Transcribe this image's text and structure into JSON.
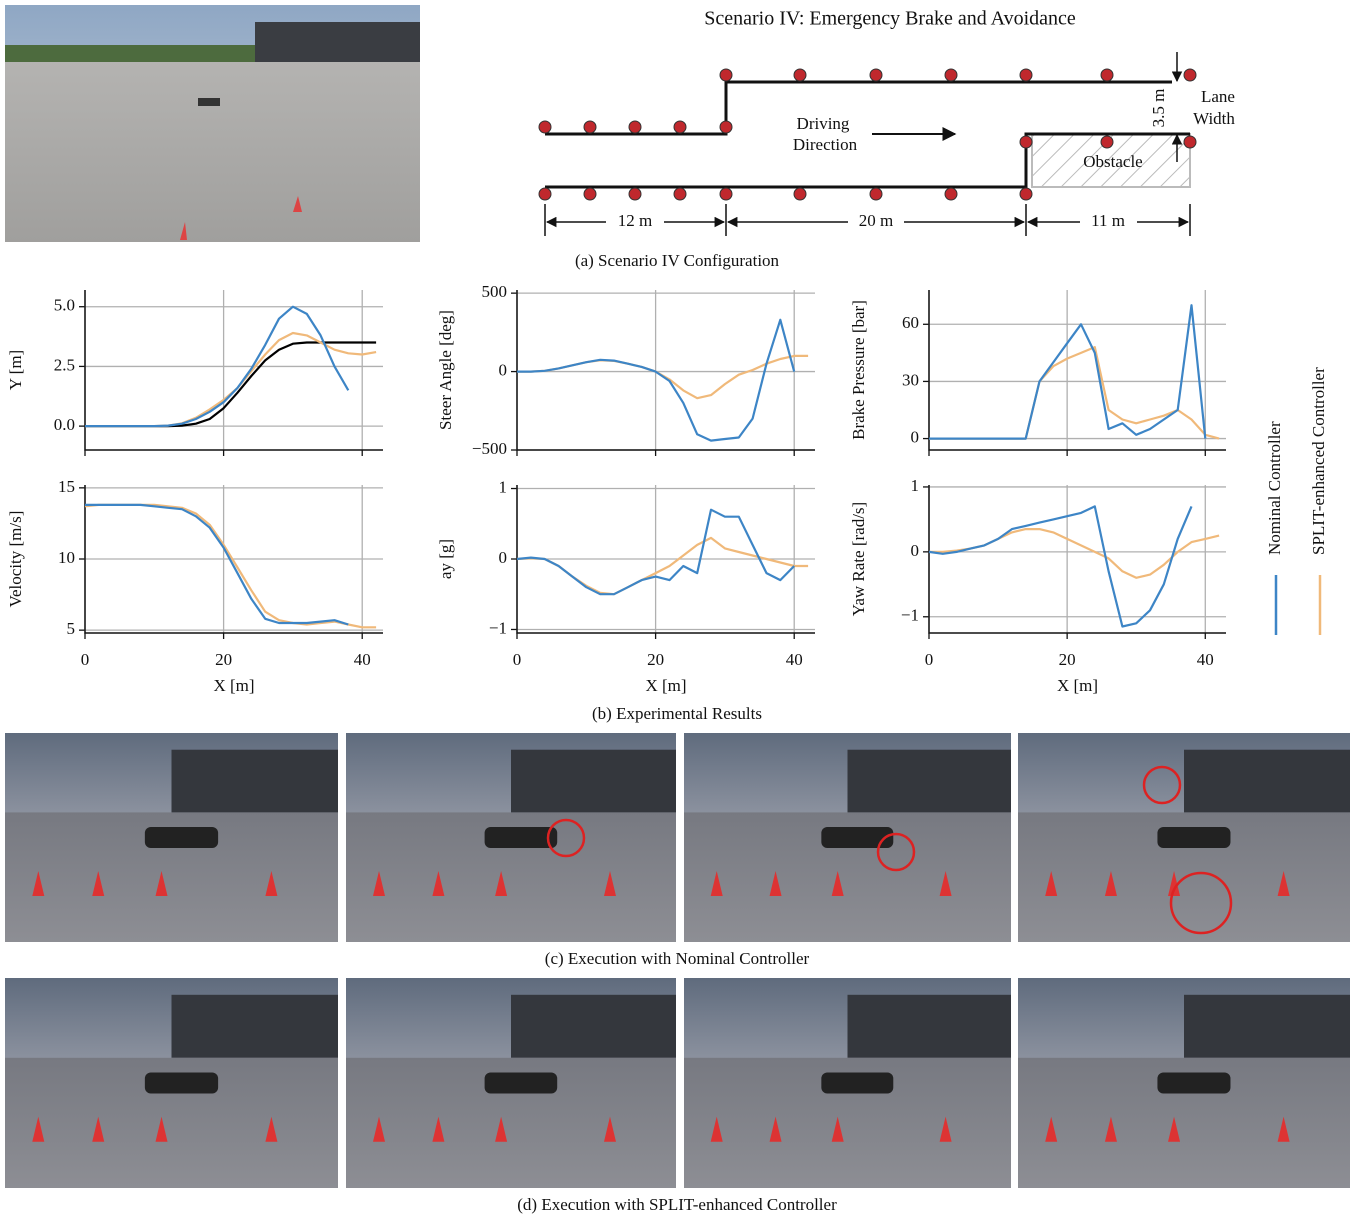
{
  "scenario": {
    "title": "Scenario IV: Emergency Brake and Avoidance",
    "driving": "Driving",
    "direction": "Direction",
    "lane": "Lane",
    "width": "Width",
    "lane_width": "3.5 m",
    "obstacle": "Obstacle",
    "seg1": "12 m",
    "seg2": "20 m",
    "seg3": "11 m",
    "caption": "(a) Scenario IV Configuration"
  },
  "results_caption": "(b) Experimental Results",
  "nominal_caption": "(c) Execution with Nominal Controller",
  "split_caption": "(d) Execution with SPLIT-enhanced Controller",
  "chart_data": [
    {
      "type": "line",
      "ylabel": "Y [m]",
      "x": [
        0,
        2,
        4,
        6,
        8,
        10,
        12,
        14,
        16,
        18,
        20,
        22,
        24,
        26,
        28,
        30,
        32,
        34,
        36,
        38,
        40,
        42
      ],
      "xlim": [
        0,
        43
      ],
      "xticks": [
        0,
        20,
        40
      ],
      "ylim": [
        -1,
        5.7
      ],
      "yticks": [
        {
          "value": 0,
          "label": "0.0"
        },
        {
          "value": 2.5,
          "label": "2.5"
        },
        {
          "value": 5,
          "label": "5.0"
        }
      ],
      "grid": true,
      "series": [
        {
          "name": "Nominal Controller",
          "color": "#3d85c6",
          "values": [
            0,
            0,
            0,
            0,
            0,
            0,
            0.02,
            0.1,
            0.3,
            0.6,
            1.0,
            1.6,
            2.4,
            3.4,
            4.5,
            5.0,
            4.7,
            3.8,
            2.5,
            1.5,
            null,
            null
          ]
        },
        {
          "name": "SPLIT-enhanced Controller",
          "color": "#f0b97a",
          "values": [
            0,
            0,
            0,
            0,
            0,
            0,
            0.02,
            0.12,
            0.35,
            0.7,
            1.1,
            1.6,
            2.3,
            3.0,
            3.6,
            3.9,
            3.8,
            3.5,
            3.2,
            3.05,
            3.0,
            3.1
          ]
        },
        {
          "color": "#000000",
          "values": [
            0,
            0,
            0,
            0,
            0,
            0,
            0,
            0.02,
            0.1,
            0.3,
            0.75,
            1.4,
            2.1,
            2.75,
            3.2,
            3.45,
            3.5,
            3.5,
            3.5,
            3.5,
            3.5,
            3.5
          ]
        }
      ]
    },
    {
      "type": "line",
      "ylabel": "Steer Angle [deg]",
      "x": [
        0,
        2,
        4,
        6,
        8,
        10,
        12,
        14,
        16,
        18,
        20,
        22,
        24,
        26,
        28,
        30,
        32,
        34,
        36,
        38,
        40,
        42
      ],
      "xlim": [
        0,
        43
      ],
      "xticks": [
        0,
        20,
        40
      ],
      "ylim": [
        -500,
        520
      ],
      "yticks": [
        {
          "value": -500,
          "label": "−500"
        },
        0,
        500
      ],
      "grid": true,
      "series": [
        {
          "color": "#3d85c6",
          "values": [
            0,
            0,
            5,
            20,
            40,
            60,
            75,
            70,
            50,
            30,
            0,
            -60,
            -200,
            -400,
            -440,
            -430,
            -420,
            -300,
            50,
            330,
            0,
            null
          ]
        },
        {
          "color": "#f0b97a",
          "values": [
            0,
            0,
            5,
            20,
            40,
            60,
            72,
            68,
            50,
            30,
            0,
            -50,
            -120,
            -170,
            -150,
            -80,
            -20,
            10,
            50,
            80,
            100,
            100
          ]
        }
      ]
    },
    {
      "type": "line",
      "ylabel": "Brake Pressure [bar]",
      "x": [
        0,
        2,
        4,
        6,
        8,
        10,
        12,
        14,
        16,
        18,
        20,
        22,
        24,
        26,
        28,
        30,
        32,
        34,
        36,
        38,
        40,
        42
      ],
      "xlim": [
        0,
        43
      ],
      "xticks": [
        0,
        20,
        40
      ],
      "ylim": [
        -6,
        78
      ],
      "yticks": [
        0,
        30,
        60
      ],
      "grid": true,
      "series": [
        {
          "color": "#3d85c6",
          "values": [
            0,
            0,
            0,
            0,
            0,
            0,
            0,
            0,
            30,
            40,
            50,
            60,
            45,
            5,
            8,
            2,
            5,
            10,
            15,
            70,
            0,
            null
          ]
        },
        {
          "color": "#f0b97a",
          "values": [
            0,
            0,
            0,
            0,
            0,
            0,
            0,
            0,
            30,
            38,
            42,
            45,
            48,
            15,
            10,
            8,
            10,
            12,
            15,
            10,
            2,
            0
          ]
        }
      ]
    },
    {
      "type": "line",
      "ylabel": "Velocity [m/s]",
      "xlabel": "X [m]",
      "x": [
        0,
        2,
        4,
        6,
        8,
        10,
        12,
        14,
        16,
        18,
        20,
        22,
        24,
        26,
        28,
        30,
        32,
        34,
        36,
        38,
        40,
        42
      ],
      "xlim": [
        0,
        43
      ],
      "xticks": [
        0,
        20,
        40
      ],
      "ylim": [
        4.8,
        15.2
      ],
      "yticks": [
        5,
        10,
        15
      ],
      "grid": true,
      "series": [
        {
          "color": "#3d85c6",
          "values": [
            13.8,
            13.8,
            13.8,
            13.8,
            13.8,
            13.7,
            13.6,
            13.5,
            13.0,
            12.2,
            10.8,
            9.0,
            7.2,
            5.8,
            5.5,
            5.5,
            5.5,
            5.6,
            5.7,
            5.4,
            null,
            null
          ]
        },
        {
          "color": "#f0b97a",
          "values": [
            13.7,
            13.8,
            13.8,
            13.8,
            13.8,
            13.8,
            13.7,
            13.6,
            13.2,
            12.4,
            11.0,
            9.4,
            7.8,
            6.3,
            5.7,
            5.5,
            5.4,
            5.5,
            5.6,
            5.4,
            5.2,
            5.2
          ]
        }
      ]
    },
    {
      "type": "line",
      "ylabel": "ay [g]",
      "xlabel": "X [m]",
      "x": [
        0,
        2,
        4,
        6,
        8,
        10,
        12,
        14,
        16,
        18,
        20,
        22,
        24,
        26,
        28,
        30,
        32,
        34,
        36,
        38,
        40,
        42
      ],
      "xlim": [
        0,
        43
      ],
      "xticks": [
        0,
        20,
        40
      ],
      "ylim": [
        -1.05,
        1.05
      ],
      "yticks": [
        {
          "value": -1,
          "label": "−1"
        },
        0,
        1
      ],
      "grid": true,
      "series": [
        {
          "color": "#3d85c6",
          "values": [
            0,
            0.02,
            0,
            -0.1,
            -0.25,
            -0.4,
            -0.5,
            -0.5,
            -0.4,
            -0.3,
            -0.25,
            -0.3,
            -0.1,
            -0.2,
            0.7,
            0.6,
            0.6,
            0.2,
            -0.2,
            -0.3,
            -0.1,
            null
          ]
        },
        {
          "color": "#f0b97a",
          "values": [
            0,
            0.01,
            0,
            -0.1,
            -0.25,
            -0.38,
            -0.48,
            -0.5,
            -0.4,
            -0.3,
            -0.2,
            -0.1,
            0.05,
            0.2,
            0.3,
            0.15,
            0.1,
            0.05,
            0,
            -0.05,
            -0.1,
            -0.1
          ]
        }
      ]
    },
    {
      "type": "line",
      "ylabel": "Yaw Rate [rad/s]",
      "xlabel": "X [m]",
      "x": [
        0,
        2,
        4,
        6,
        8,
        10,
        12,
        14,
        16,
        18,
        20,
        22,
        24,
        26,
        28,
        30,
        32,
        34,
        36,
        38,
        40,
        42
      ],
      "xlim": [
        0,
        43
      ],
      "xticks": [
        0,
        20,
        40
      ],
      "ylim": [
        -1.25,
        1.03
      ],
      "yticks": [
        {
          "value": -1,
          "label": "−1"
        },
        0,
        1
      ],
      "grid": true,
      "series": [
        {
          "color": "#3d85c6",
          "values": [
            0,
            -0.03,
            0,
            0.05,
            0.1,
            0.2,
            0.35,
            0.4,
            0.45,
            0.5,
            0.55,
            0.6,
            0.7,
            -0.3,
            -1.15,
            -1.1,
            -0.9,
            -0.5,
            0.2,
            0.7,
            null,
            null
          ]
        },
        {
          "color": "#f0b97a",
          "values": [
            0,
            0,
            0.02,
            0.05,
            0.1,
            0.2,
            0.3,
            0.35,
            0.35,
            0.3,
            0.2,
            0.1,
            0,
            -0.1,
            -0.3,
            -0.4,
            -0.35,
            -0.2,
            0,
            0.15,
            0.2,
            0.25
          ]
        }
      ]
    }
  ]
}
